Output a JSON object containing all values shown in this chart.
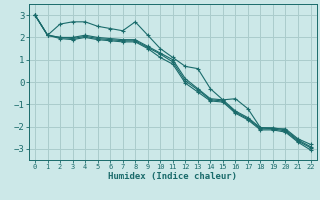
{
  "xlabel": "Humidex (Indice chaleur)",
  "xlim": [
    -0.5,
    22.5
  ],
  "ylim": [
    -3.5,
    3.5
  ],
  "yticks": [
    -3,
    -2,
    -1,
    0,
    1,
    2,
    3
  ],
  "xticks": [
    0,
    1,
    2,
    3,
    4,
    5,
    6,
    7,
    8,
    9,
    10,
    11,
    12,
    13,
    14,
    15,
    16,
    17,
    18,
    19,
    20,
    21,
    22
  ],
  "bg_color": "#cce8e8",
  "grid_color": "#aacccc",
  "line_color": "#1a6b6b",
  "series": [
    [
      3.0,
      2.1,
      2.6,
      2.7,
      2.7,
      2.5,
      2.4,
      2.3,
      2.7,
      2.1,
      1.5,
      1.1,
      0.7,
      0.6,
      -0.3,
      -0.8,
      -0.75,
      -1.2,
      -2.05,
      -2.1,
      -2.1,
      -2.55,
      -2.8
    ],
    [
      3.0,
      2.1,
      2.0,
      2.0,
      2.1,
      2.0,
      1.95,
      1.9,
      1.9,
      1.6,
      1.3,
      1.0,
      0.15,
      -0.3,
      -0.75,
      -0.8,
      -1.3,
      -1.6,
      -2.05,
      -2.05,
      -2.15,
      -2.6,
      -2.9
    ],
    [
      3.0,
      2.1,
      2.0,
      1.95,
      2.05,
      1.95,
      1.9,
      1.85,
      1.85,
      1.55,
      1.25,
      0.9,
      0.05,
      -0.35,
      -0.8,
      -0.85,
      -1.35,
      -1.65,
      -2.1,
      -2.1,
      -2.2,
      -2.65,
      -2.95
    ],
    [
      3.0,
      2.1,
      1.95,
      1.9,
      2.0,
      1.9,
      1.85,
      1.8,
      1.8,
      1.5,
      1.1,
      0.8,
      -0.05,
      -0.45,
      -0.85,
      -0.9,
      -1.4,
      -1.7,
      -2.15,
      -2.15,
      -2.25,
      -2.7,
      -3.05
    ]
  ]
}
